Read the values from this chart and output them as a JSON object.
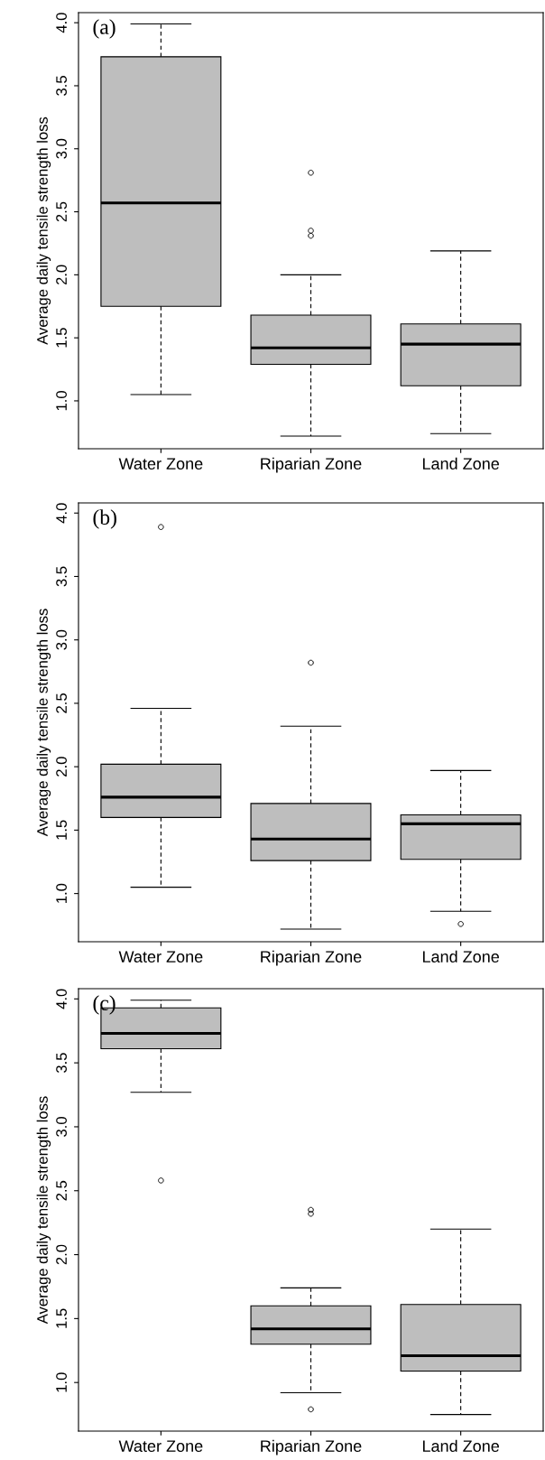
{
  "chart_data": [
    {
      "type": "box",
      "title": "(a)",
      "ylabel": "Average daily tensile strength loss",
      "categories": [
        "Water Zone",
        "Riparian Zone",
        "Land Zone"
      ],
      "ylim": [
        0.62,
        4.08
      ],
      "yticks": [
        {
          "value": 1,
          "label": "1.0"
        },
        1.5,
        {
          "value": 2,
          "label": "2.0"
        },
        2.5,
        {
          "value": 3,
          "label": "3.0"
        },
        3.5,
        {
          "value": 4,
          "label": "4.0"
        }
      ],
      "color": "#bebebe",
      "grid": false,
      "boxes": [
        {
          "low": 1.05,
          "q1": 1.75,
          "median": 2.57,
          "q3": 3.73,
          "high": 3.99
        },
        {
          "low": 0.72,
          "q1": 1.29,
          "median": 1.42,
          "q3": 1.68,
          "high": 2.0,
          "outliers": [
            2.31,
            2.35,
            2.81
          ]
        },
        {
          "low": 0.74,
          "q1": 1.12,
          "median": 1.45,
          "q3": 1.61,
          "high": 2.19
        }
      ]
    },
    {
      "type": "box",
      "title": "(b)",
      "ylabel": "Average daily tensile strength loss",
      "categories": [
        "Water Zone",
        "Riparian Zone",
        "Land Zone"
      ],
      "ylim": [
        0.62,
        4.08
      ],
      "yticks": [
        {
          "value": 1,
          "label": "1.0"
        },
        1.5,
        {
          "value": 2,
          "label": "2.0"
        },
        2.5,
        {
          "value": 3,
          "label": "3.0"
        },
        3.5,
        {
          "value": 4,
          "label": "4.0"
        }
      ],
      "color": "#bebebe",
      "grid": false,
      "boxes": [
        {
          "low": 1.05,
          "q1": 1.6,
          "median": 1.76,
          "q3": 2.02,
          "high": 2.46,
          "outliers": [
            3.89
          ]
        },
        {
          "low": 0.72,
          "q1": 1.26,
          "median": 1.43,
          "q3": 1.71,
          "high": 2.32,
          "outliers": [
            2.82
          ]
        },
        {
          "low": 0.86,
          "q1": 1.27,
          "median": 1.55,
          "q3": 1.62,
          "high": 1.97,
          "outliers": [
            0.76
          ]
        }
      ]
    },
    {
      "type": "box",
      "title": "(c)",
      "ylabel": "Average daily tensile strength loss",
      "categories": [
        "Water Zone",
        "Riparian Zone",
        "Land Zone"
      ],
      "ylim": [
        0.62,
        4.08
      ],
      "yticks": [
        {
          "value": 1,
          "label": "1.0"
        },
        1.5,
        {
          "value": 2,
          "label": "2.0"
        },
        2.5,
        {
          "value": 3,
          "label": "3.0"
        },
        3.5,
        {
          "value": 4,
          "label": "4.0"
        }
      ],
      "color": "#bebebe",
      "grid": false,
      "boxes": [
        {
          "low": 3.27,
          "q1": 3.61,
          "median": 3.73,
          "q3": 3.93,
          "high": 3.99,
          "outliers": [
            2.58
          ]
        },
        {
          "low": 0.92,
          "q1": 1.3,
          "median": 1.42,
          "q3": 1.6,
          "high": 1.74,
          "outliers": [
            0.79,
            2.32,
            2.35
          ]
        },
        {
          "low": 0.75,
          "q1": 1.09,
          "median": 1.21,
          "q3": 1.61,
          "high": 2.2
        }
      ]
    }
  ]
}
